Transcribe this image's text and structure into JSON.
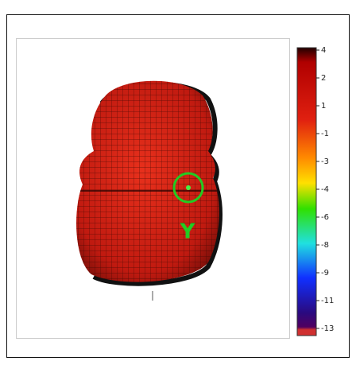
{
  "colorbar": {
    "ticks": [
      4,
      2,
      1,
      -1,
      -3,
      -4,
      -6,
      -8,
      -9,
      -11,
      -13
    ]
  },
  "annotation": "Y"
}
